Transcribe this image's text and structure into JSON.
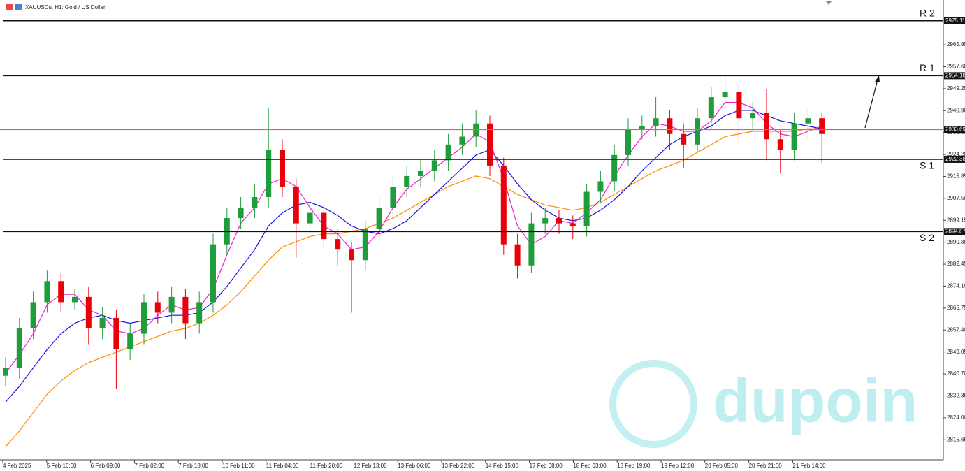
{
  "chart_data": {
    "type": "candlestick",
    "title": "XAUUSDu, H1: Gold / US Dollar",
    "watermark": "dupoin",
    "up_color": "#1f9d3a",
    "down_color": "#e8000b",
    "ylim": [
      2808,
      2983
    ],
    "yticks": [
      2815.65,
      {
        "value": 2824.0,
        "label": "2824.00"
      },
      2832.35,
      {
        "value": 2840.7,
        "label": "2840.70"
      },
      2849.05,
      {
        "value": 2857.4,
        "label": "2857.40"
      },
      2865.75,
      {
        "value": 2874.1,
        "label": "2874.10"
      },
      2882.45,
      {
        "value": 2890.8,
        "label": "2890.80"
      },
      2899.15,
      {
        "value": 2907.5,
        "label": "2907.50"
      },
      2915.85,
      {
        "value": 2924.2,
        "label": "2924.20"
      },
      2932.55,
      {
        "value": 2940.9,
        "label": "2940.90"
      },
      2949.25,
      {
        "value": 2957.6,
        "label": "2957.60"
      },
      2965.95
    ],
    "x_labels": [
      "4 Feb 2025",
      "5 Feb 16:00",
      "6 Feb 09:00",
      "7 Feb 02:00",
      "7 Feb 18:00",
      "10 Feb 11:00",
      "11 Feb 04:00",
      "11 Feb 20:00",
      "12 Feb 13:00",
      "13 Feb 06:00",
      "13 Feb 22:00",
      "14 Feb 15:00",
      "17 Feb 08:00",
      "18 Feb 03:00",
      "18 Feb 19:00",
      "19 Feb 12:00",
      "20 Feb 05:00",
      "20 Feb 21:00",
      "21 Feb 14:00"
    ],
    "levels": [
      {
        "name": "R 2",
        "value": 2975.11
      },
      {
        "name": "R 1",
        "value": 2954.18
      },
      {
        "name": "S 1",
        "value": 2922.38
      },
      {
        "name": "S 2",
        "value": 2894.87
      }
    ],
    "current_price": 2933.69,
    "current_color": "#e06060",
    "open": [
      2840,
      2843,
      2858,
      2868,
      2876,
      2868,
      2870,
      2858,
      2862,
      2850,
      2856,
      2868,
      2864,
      2870,
      2860,
      2868,
      2890,
      2900,
      2904,
      2908,
      2926,
      2912,
      2898,
      2902,
      2892,
      2888,
      2884,
      2896,
      2904,
      2912,
      2916,
      2918,
      2922,
      2928,
      2931,
      2936,
      2920,
      2890,
      2882,
      2898,
      2900,
      2898,
      2897,
      2910,
      2914,
      2924,
      2934,
      2935,
      2938,
      2932,
      2928,
      2938,
      2946,
      2948,
      2938,
      2940,
      2930,
      2926,
      2936,
      2938
    ],
    "high": [
      2847,
      2862,
      2872,
      2880,
      2879,
      2873,
      2874,
      2866,
      2865,
      2860,
      2871,
      2872,
      2874,
      2873,
      2872,
      2894,
      2904,
      2908,
      2913,
      2942,
      2930,
      2915,
      2906,
      2905,
      2896,
      2891,
      2899,
      2908,
      2916,
      2920,
      2922,
      2926,
      2932,
      2936,
      2941,
      2939,
      2923,
      2894,
      2902,
      2904,
      2903,
      2901,
      2913,
      2918,
      2928,
      2938,
      2939,
      2946,
      2941,
      2936,
      2942,
      2950,
      2954,
      2951,
      2944,
      2949,
      2934,
      2940,
      2942,
      2940
    ],
    "low": [
      2836,
      2839,
      2854,
      2864,
      2864,
      2865,
      2852,
      2854,
      2835,
      2846,
      2852,
      2860,
      2860,
      2854,
      2856,
      2864,
      2886,
      2896,
      2900,
      2904,
      2908,
      2885,
      2894,
      2888,
      2882,
      2864,
      2880,
      2892,
      2900,
      2908,
      2912,
      2914,
      2918,
      2924,
      2927,
      2916,
      2886,
      2877,
      2879,
      2894,
      2894,
      2892,
      2893,
      2906,
      2910,
      2920,
      2930,
      2931,
      2926,
      2919,
      2925,
      2934,
      2942,
      2928,
      2934,
      2922,
      2917,
      2922,
      2930,
      2921
    ],
    "close": [
      2843,
      2858,
      2868,
      2876,
      2868,
      2870,
      2858,
      2862,
      2850,
      2856,
      2868,
      2864,
      2870,
      2860,
      2868,
      2890,
      2900,
      2904,
      2908,
      2926,
      2912,
      2898,
      2902,
      2892,
      2888,
      2884,
      2896,
      2904,
      2912,
      2916,
      2918,
      2922,
      2928,
      2931,
      2936,
      2920,
      2890,
      2882,
      2898,
      2900,
      2898,
      2897,
      2910,
      2914,
      2924,
      2934,
      2935,
      2938,
      2932,
      2928,
      2938,
      2946,
      2948,
      2938,
      2940,
      2930,
      2926,
      2936,
      2938,
      2932
    ],
    "moving_averages": [
      {
        "color": "#ff8c00",
        "values": [
          2813,
          2819,
          2826,
          2833,
          2838,
          2842,
          2845,
          2847,
          2849,
          2851,
          2853,
          2855,
          2857,
          2858,
          2860,
          2863,
          2867,
          2872,
          2878,
          2884,
          2889,
          2891,
          2893,
          2894,
          2894,
          2895,
          2896,
          2898,
          2900,
          2903,
          2906,
          2909,
          2912,
          2914,
          2916,
          2915,
          2912,
          2909,
          2907,
          2905,
          2904,
          2903,
          2904,
          2906,
          2909,
          2912,
          2915,
          2918,
          2920,
          2922,
          2925,
          2928,
          2931,
          2932,
          2933,
          2933,
          2933,
          2933,
          2934,
          2934
        ]
      },
      {
        "color": "#1414e0",
        "values": [
          2830,
          2836,
          2843,
          2850,
          2856,
          2860,
          2862,
          2863,
          2861,
          2860,
          2861,
          2862,
          2863,
          2863,
          2864,
          2868,
          2874,
          2881,
          2888,
          2897,
          2902,
          2905,
          2906,
          2904,
          2901,
          2897,
          2895,
          2894,
          2896,
          2899,
          2904,
          2909,
          2914,
          2919,
          2924,
          2926,
          2920,
          2913,
          2907,
          2903,
          2900,
          2899,
          2900,
          2903,
          2907,
          2912,
          2918,
          2923,
          2928,
          2931,
          2933,
          2935,
          2939,
          2941,
          2941,
          2939,
          2937,
          2936,
          2935,
          2934
        ]
      },
      {
        "color": "#f020d0",
        "values": [
          2841,
          2848,
          2856,
          2867,
          2871,
          2871,
          2865,
          2863,
          2857,
          2856,
          2858,
          2863,
          2867,
          2865,
          2866,
          2873,
          2886,
          2898,
          2904,
          2913,
          2915,
          2912,
          2904,
          2897,
          2894,
          2888,
          2889,
          2895,
          2904,
          2911,
          2915,
          2919,
          2923,
          2927,
          2932,
          2929,
          2915,
          2897,
          2890,
          2893,
          2899,
          2898,
          2902,
          2907,
          2916,
          2924,
          2931,
          2936,
          2935,
          2933,
          2933,
          2937,
          2944,
          2944,
          2942,
          2936,
          2932,
          2931,
          2933,
          2935
        ]
      }
    ]
  }
}
